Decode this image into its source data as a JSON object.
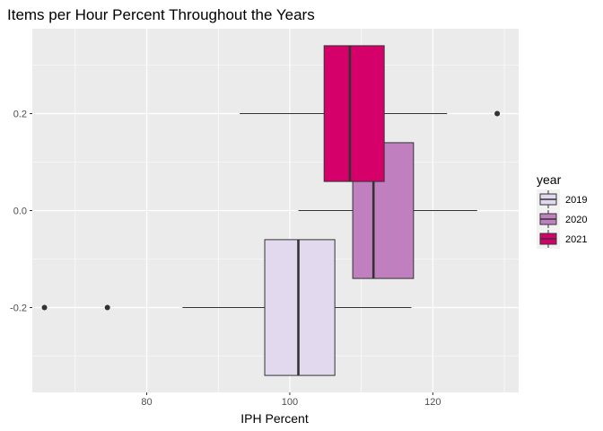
{
  "chart_data": {
    "type": "boxplot",
    "orientation": "horizontal",
    "title": "Items per Hour Percent Throughout the Years",
    "xlabel": "IPH Percent",
    "ylabel": "",
    "xlim": [
      64,
      132
    ],
    "ylim": [
      -0.375,
      0.375
    ],
    "x_ticks": [
      80,
      100,
      120
    ],
    "y_ticks": [
      0.2,
      0.0,
      -0.2
    ],
    "y_tick_labels": [
      "0.2",
      "0.0",
      "-0.2"
    ],
    "grid": true,
    "legend": {
      "title": "year",
      "position": "right"
    },
    "series": [
      {
        "name": "2019",
        "color": "#e2d9ee",
        "y_center": -0.2,
        "whisker_low": 85,
        "q1": 96.5,
        "median": 101.2,
        "q3": 106.3,
        "whisker_high": 117,
        "outliers": [
          65.7,
          74.5
        ]
      },
      {
        "name": "2020",
        "color": "#c080c0",
        "y_center": 0.0,
        "whisker_low": 101.2,
        "q1": 108.8,
        "median": 111.7,
        "q3": 117.3,
        "whisker_high": 126.2,
        "outliers": []
      },
      {
        "name": "2021",
        "color": "#d5006a",
        "y_center": 0.2,
        "whisker_low": 93,
        "q1": 104.8,
        "median": 108.4,
        "q3": 113.2,
        "whisker_high": 122,
        "outliers": [
          129
        ]
      }
    ]
  }
}
